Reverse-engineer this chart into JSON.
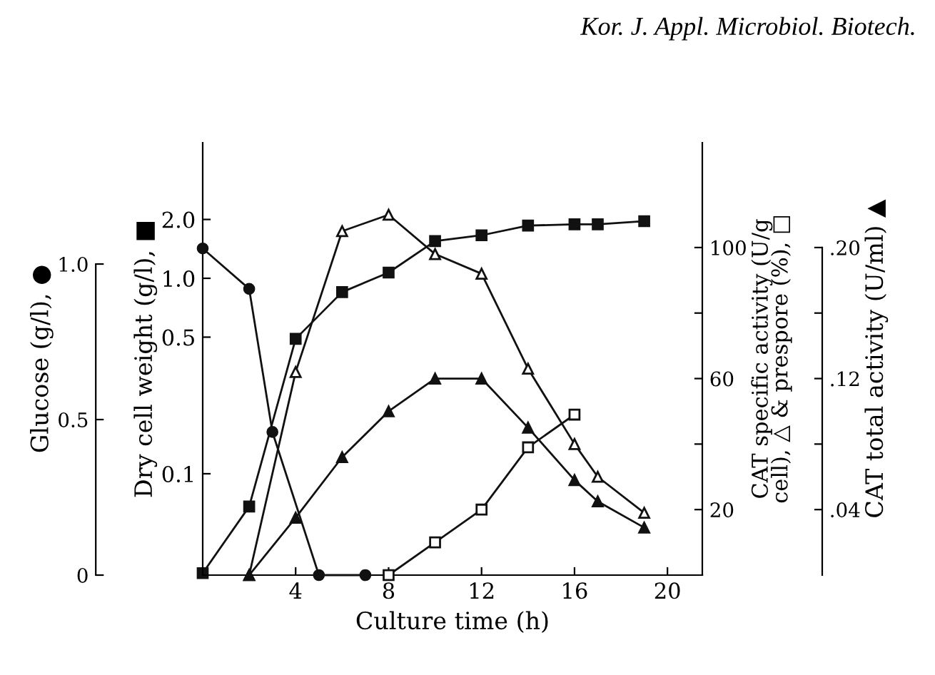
{
  "chart_data": [
    {
      "type": "line",
      "annotations": [
        "Kor. J. Appl. Microbiol. Biotech."
      ],
      "xlabel": "Culture time (h)",
      "ylabel": "Dry cell weight (g/l), ■",
      "y3label": "Glucose (g/l), ●",
      "xlim": [
        0,
        21.5
      ],
      "xticks": [
        4,
        8,
        12,
        16,
        20
      ],
      "log": "y",
      "ylim": [
        0.0303,
        4.94
      ],
      "yticks": [
        {
          "value": 0.1,
          "label": "0.1"
        },
        {
          "value": 0.5,
          "label": "0.5"
        },
        {
          "value": 1.0,
          "label": "1.0"
        },
        {
          "value": 2.0,
          "label": "2.0"
        }
      ],
      "y3lim": [
        0,
        1.39
      ],
      "y3ticks": [
        0,
        0.5,
        {
          "value": 1.0,
          "label": "1.0"
        }
      ],
      "grid": false,
      "legend": false,
      "line_style": "solid",
      "series": [
        {
          "axis": "y3",
          "color": "#111111",
          "marker": "circle",
          "x": [
            0,
            2,
            3,
            5,
            7
          ],
          "values": [
            1.05,
            0.92,
            0.46,
            0.0,
            0.0
          ]
        },
        {
          "axis": "y",
          "color": "#111111",
          "marker": "square",
          "x": [
            0,
            2,
            4,
            6,
            8,
            10,
            12,
            14,
            16,
            17,
            19
          ],
          "values": [
            0.031,
            0.068,
            0.49,
            0.85,
            1.07,
            1.55,
            1.66,
            1.86,
            1.89,
            1.89,
            1.96
          ]
        }
      ]
    },
    {
      "type": "line",
      "y2label": "CAT specific activity (U/g\ncell), △ & prespore (%), □",
      "y3label": "CAT total activity (U/ml) ▲",
      "xlim": [
        0,
        21.5
      ],
      "tick_labels": "y",
      "y2lim": [
        0,
        132
      ],
      "y2ticks": [
        20,
        {
          "value": 40,
          "label": null
        },
        60,
        {
          "value": 80,
          "label": null
        },
        100
      ],
      "y3lim": [
        0,
        0.264
      ],
      "y3ticks": [
        {
          "value": 0.04,
          "label": ".04"
        },
        {
          "value": 0.08,
          "label": null
        },
        {
          "value": 0.12,
          "label": ".12"
        },
        {
          "value": 0.16,
          "label": null
        },
        {
          "value": 0.2,
          "label": ".20"
        }
      ],
      "grid": false,
      "legend": false,
      "line_style": "solid",
      "series": [
        {
          "axis": "y2",
          "color": "#111111",
          "marker": "triangle",
          "x": [
            2,
            4,
            6,
            8,
            10,
            12,
            14,
            16,
            17,
            19
          ],
          "values": [
            0,
            62,
            105,
            110,
            98,
            92,
            63,
            40,
            30,
            19
          ]
        },
        {
          "axis": "y2",
          "color": "#111111",
          "marker": "square",
          "x": [
            8,
            10,
            12,
            14,
            16
          ],
          "values": [
            0,
            10,
            20,
            39,
            49
          ]
        },
        {
          "axis": "y3",
          "color": "#111111",
          "marker": "triangle",
          "x": [
            2,
            4,
            6,
            8,
            10,
            12,
            14,
            16,
            17,
            19
          ],
          "values": [
            0,
            0.035,
            0.072,
            0.1,
            0.12,
            0.12,
            0.09,
            0.058,
            0.045,
            0.029
          ]
        }
      ]
    }
  ]
}
